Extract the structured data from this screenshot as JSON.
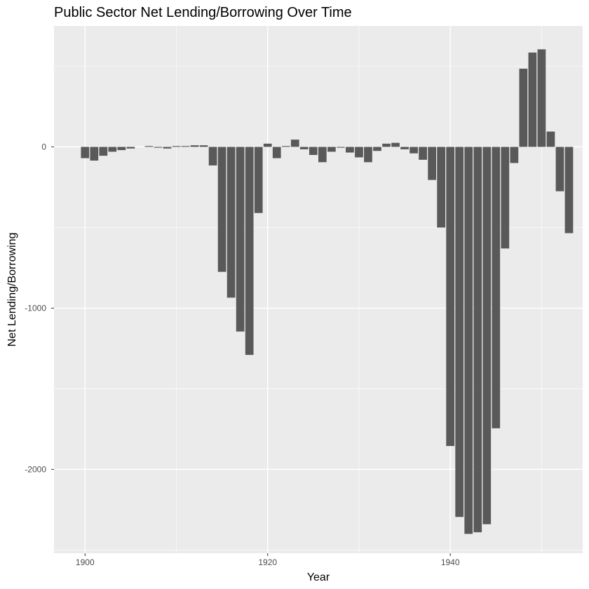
{
  "chart_data": {
    "type": "bar",
    "title": "Public Sector Net Lending/Borrowing Over Time",
    "xlabel": "Year",
    "ylabel": "Net Lending/Borrowing",
    "xlim": [
      1896.6,
      1954.5
    ],
    "ylim": [
      -2520,
      750
    ],
    "x_ticks": [
      1900,
      1920,
      1940
    ],
    "y_ticks": [
      0,
      -1000,
      -2000
    ],
    "x_tick_labels": [
      "1900",
      "1920",
      "1940"
    ],
    "y_tick_labels": [
      "0",
      "-1000",
      "-2000"
    ],
    "grid": true,
    "bar_color": "#595959",
    "panel_background": "#ebebeb",
    "grid_color": "#ffffff",
    "x": [
      1900,
      1901,
      1902,
      1903,
      1904,
      1905,
      1906,
      1907,
      1908,
      1909,
      1910,
      1911,
      1912,
      1913,
      1914,
      1915,
      1916,
      1917,
      1918,
      1919,
      1920,
      1921,
      1922,
      1923,
      1924,
      1925,
      1926,
      1927,
      1928,
      1929,
      1930,
      1931,
      1932,
      1933,
      1934,
      1935,
      1936,
      1937,
      1938,
      1939,
      1940,
      1941,
      1942,
      1943,
      1944,
      1945,
      1946,
      1947,
      1948,
      1949,
      1950,
      1951,
      1952,
      1953
    ],
    "values": [
      -70,
      -85,
      -55,
      -30,
      -20,
      -10,
      0,
      5,
      -5,
      -10,
      5,
      5,
      10,
      10,
      -115,
      -775,
      -935,
      -1145,
      -1290,
      -410,
      20,
      -70,
      5,
      45,
      -15,
      -50,
      -95,
      -30,
      -5,
      -35,
      -65,
      -95,
      -25,
      20,
      25,
      -15,
      -40,
      -80,
      -205,
      -500,
      -1855,
      -2295,
      -2400,
      -2390,
      -2340,
      -1745,
      -630,
      -100,
      485,
      585,
      605,
      95,
      -275,
      -535
    ]
  }
}
